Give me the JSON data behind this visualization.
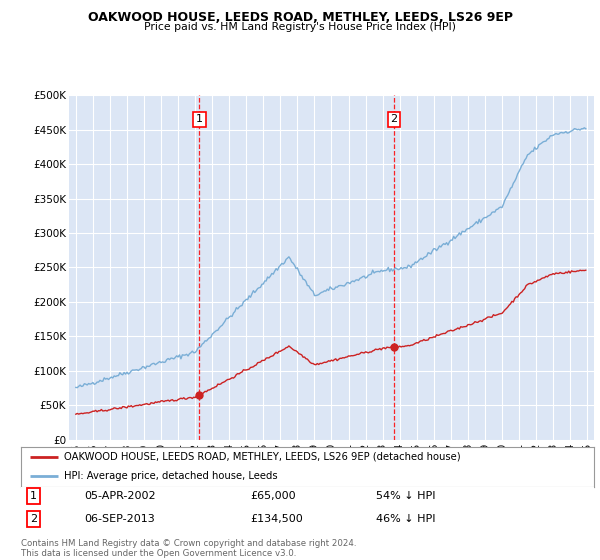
{
  "title": "OAKWOOD HOUSE, LEEDS ROAD, METHLEY, LEEDS, LS26 9EP",
  "subtitle": "Price paid vs. HM Land Registry's House Price Index (HPI)",
  "legend_line1": "OAKWOOD HOUSE, LEEDS ROAD, METHLEY, LEEDS, LS26 9EP (detached house)",
  "legend_line2": "HPI: Average price, detached house, Leeds",
  "footnote": "Contains HM Land Registry data © Crown copyright and database right 2024.\nThis data is licensed under the Open Government Licence v3.0.",
  "sale1_date": "05-APR-2002",
  "sale1_price": 65000,
  "sale1_pct": "54% ↓ HPI",
  "sale2_date": "06-SEP-2013",
  "sale2_price": 134500,
  "sale2_pct": "46% ↓ HPI",
  "hpi_color": "#7aaed6",
  "price_color": "#cc2222",
  "sale_color": "#cc2222",
  "bg_color": "#dce6f5",
  "grid_color": "#ffffff",
  "ylim": [
    0,
    500000
  ],
  "yticks": [
    0,
    50000,
    100000,
    150000,
    200000,
    250000,
    300000,
    350000,
    400000,
    450000,
    500000
  ],
  "sale1_x": 2002.25,
  "sale2_x": 2013.67
}
